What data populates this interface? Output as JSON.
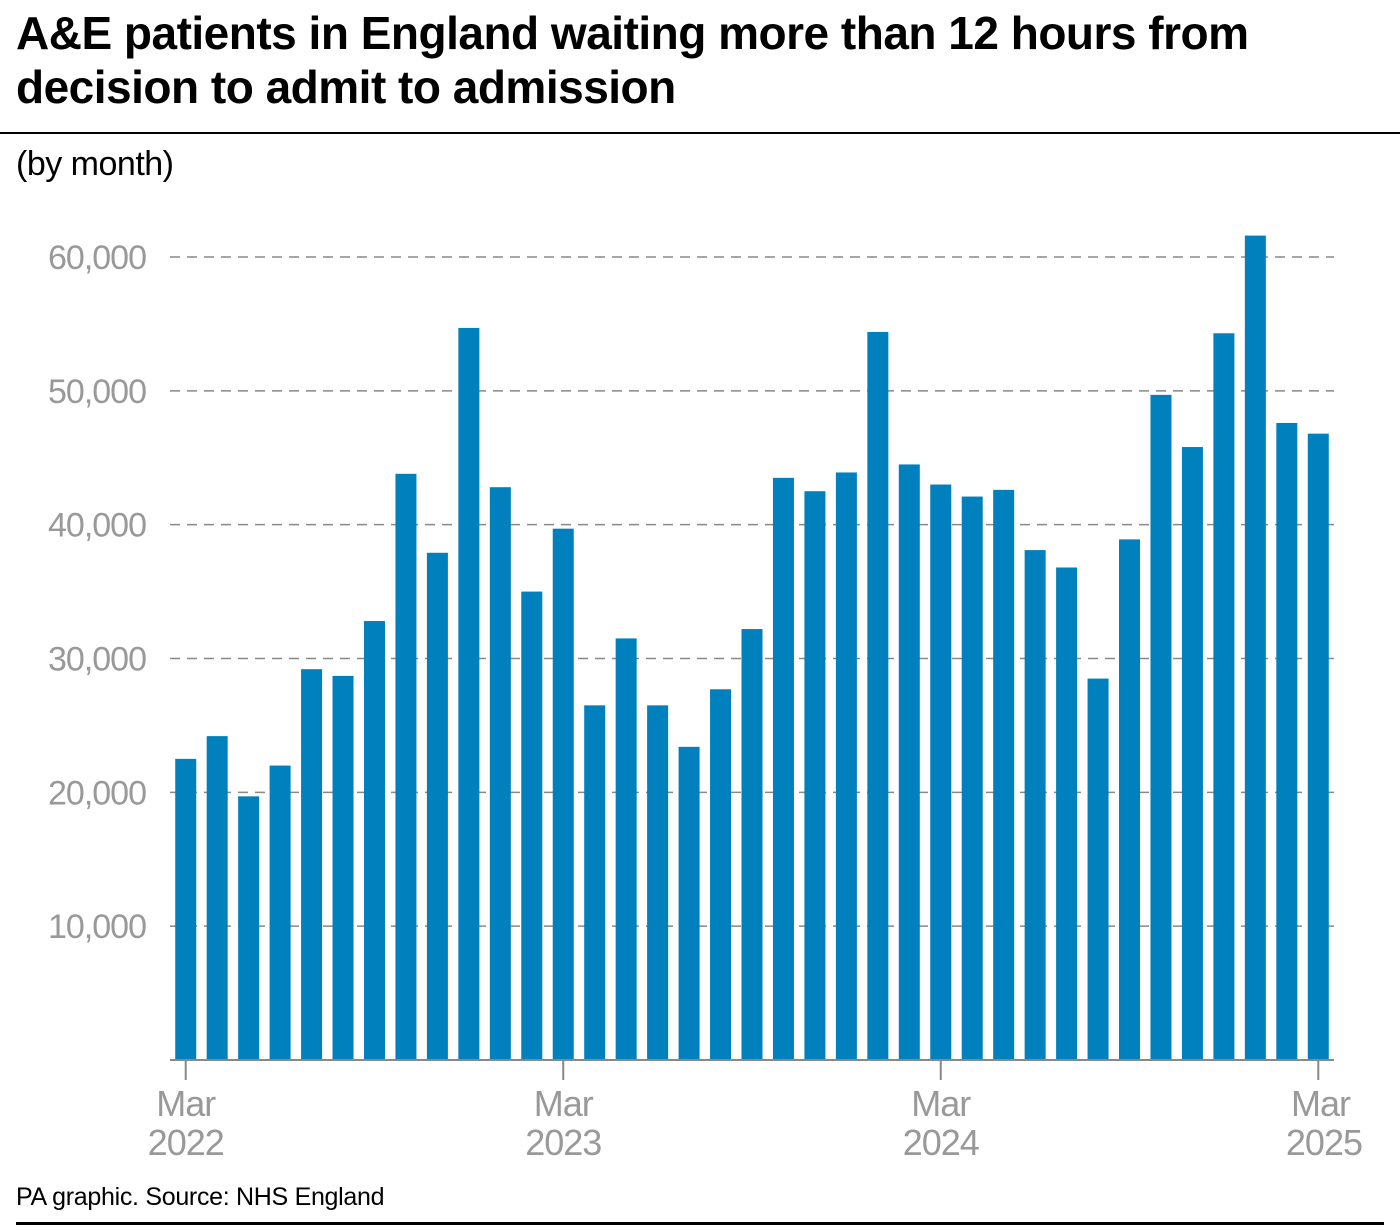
{
  "title": "A&E patients in England waiting more than 12 hours from decision to admit to admission",
  "subtitle": "(by month)",
  "source": "PA graphic. Source: NHS England",
  "colors": {
    "bar": "#0080bc",
    "grid": "#888888",
    "tick_text": "#999999",
    "axis": "#888888"
  },
  "chart_data": {
    "type": "bar",
    "ylabel": "",
    "xlabel": "",
    "ylim": [
      0,
      60000
    ],
    "yticks": [
      10000,
      20000,
      30000,
      40000,
      50000,
      60000
    ],
    "ytick_labels": [
      "10,000",
      "20,000",
      "30,000",
      "40,000",
      "50,000",
      "60,000"
    ],
    "grid": true,
    "categories": [
      "Mar 2022",
      "Apr 2022",
      "May 2022",
      "Jun 2022",
      "Jul 2022",
      "Aug 2022",
      "Sep 2022",
      "Oct 2022",
      "Nov 2022",
      "Dec 2022",
      "Jan 2023",
      "Feb 2023",
      "Mar 2023",
      "Apr 2023",
      "May 2023",
      "Jun 2023",
      "Jul 2023",
      "Aug 2023",
      "Sep 2023",
      "Oct 2023",
      "Nov 2023",
      "Dec 2023",
      "Jan 2024",
      "Feb 2024",
      "Mar 2024",
      "Apr 2024",
      "May 2024",
      "Jun 2024",
      "Jul 2024",
      "Aug 2024",
      "Sep 2024",
      "Oct 2024",
      "Nov 2024",
      "Dec 2024",
      "Jan 2025",
      "Feb 2025",
      "Mar 2025"
    ],
    "values": [
      22500,
      24200,
      19700,
      22000,
      29200,
      28700,
      32800,
      43800,
      37900,
      54700,
      42800,
      35000,
      39700,
      26500,
      31500,
      26500,
      23400,
      27700,
      32200,
      43500,
      42500,
      43900,
      54400,
      44500,
      43000,
      42100,
      42600,
      38100,
      36800,
      28500,
      38900,
      49700,
      45800,
      54300,
      61600,
      47600,
      46800
    ],
    "x_tick_labels": [
      {
        "category": "Mar 2022",
        "month": "Mar",
        "year": "2022"
      },
      {
        "category": "Mar 2023",
        "month": "Mar",
        "year": "2023"
      },
      {
        "category": "Mar 2024",
        "month": "Mar",
        "year": "2024"
      },
      {
        "category": "Mar 2025",
        "month": "Mar",
        "year": "2025"
      }
    ]
  }
}
